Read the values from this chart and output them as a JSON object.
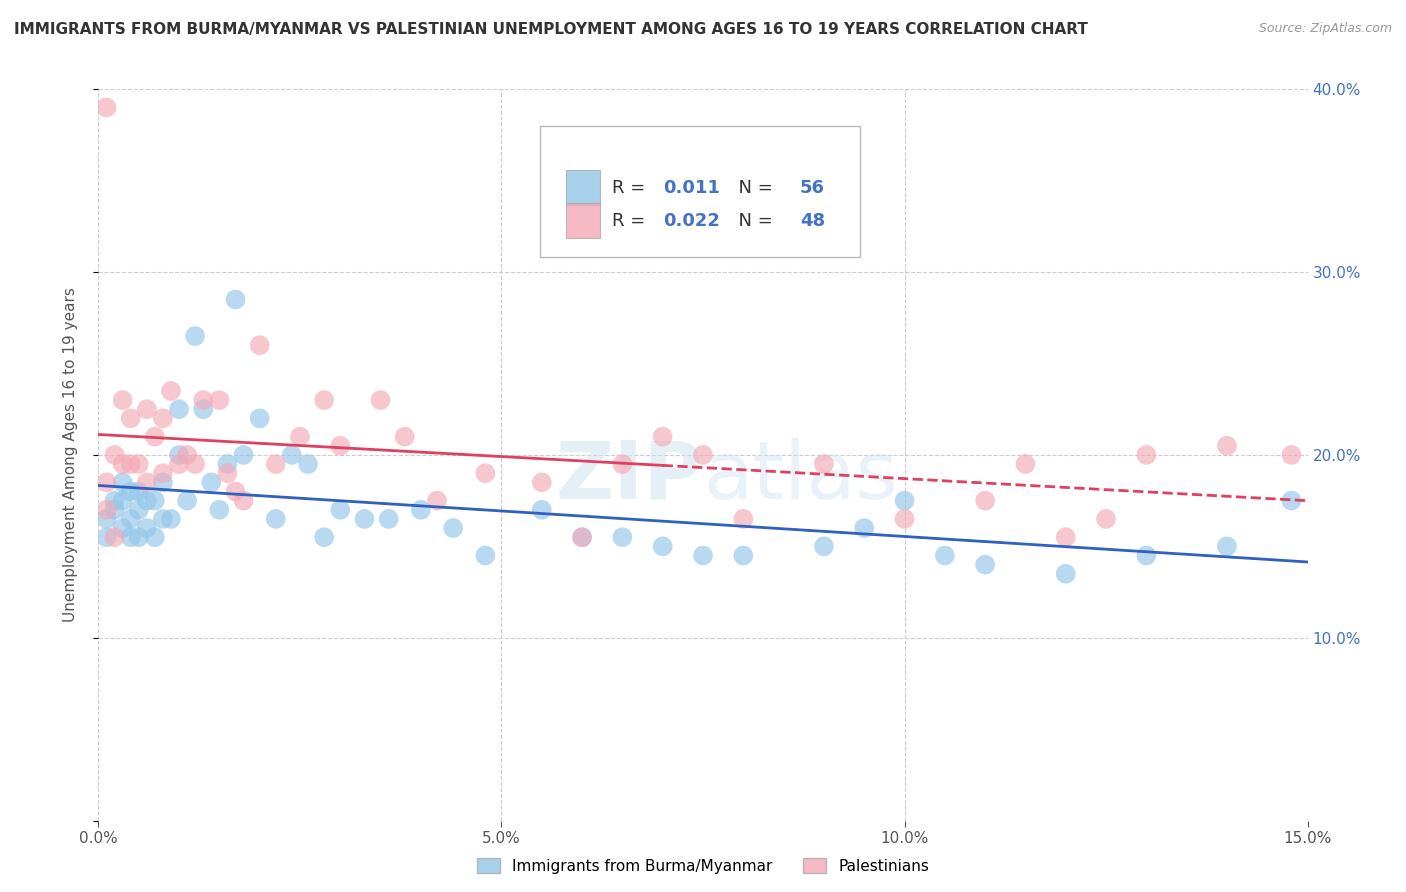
{
  "title": "IMMIGRANTS FROM BURMA/MYANMAR VS PALESTINIAN UNEMPLOYMENT AMONG AGES 16 TO 19 YEARS CORRELATION CHART",
  "source": "Source: ZipAtlas.com",
  "ylabel": "Unemployment Among Ages 16 to 19 years",
  "xlim": [
    0,
    0.15
  ],
  "ylim": [
    0,
    0.4
  ],
  "xticks": [
    0.0,
    0.05,
    0.1,
    0.15
  ],
  "xticklabels": [
    "0.0%",
    "5.0%",
    "10.0%",
    "15.0%"
  ],
  "yticks": [
    0.1,
    0.2,
    0.3,
    0.4
  ],
  "yticklabels": [
    "10.0%",
    "20.0%",
    "30.0%",
    "40.0%"
  ],
  "blue_R": 0.011,
  "blue_N": 56,
  "pink_R": 0.022,
  "pink_N": 48,
  "blue_color": "#93c6e8",
  "pink_color": "#f4a9b8",
  "blue_line_color": "#3060c0",
  "pink_line_color": "#e04060",
  "watermark": "ZIPatlas",
  "legend_blue_label": "Immigrants from Burma/Myanmar",
  "legend_pink_label": "Palestinians",
  "blue_x": [
    0.001,
    0.001,
    0.002,
    0.002,
    0.003,
    0.003,
    0.003,
    0.004,
    0.004,
    0.004,
    0.005,
    0.005,
    0.005,
    0.006,
    0.006,
    0.007,
    0.007,
    0.008,
    0.008,
    0.009,
    0.01,
    0.01,
    0.011,
    0.012,
    0.013,
    0.014,
    0.015,
    0.016,
    0.017,
    0.018,
    0.02,
    0.022,
    0.024,
    0.026,
    0.028,
    0.03,
    0.033,
    0.036,
    0.04,
    0.044,
    0.048,
    0.055,
    0.06,
    0.065,
    0.07,
    0.075,
    0.08,
    0.09,
    0.095,
    0.1,
    0.105,
    0.11,
    0.12,
    0.13,
    0.14,
    0.148
  ],
  "blue_y": [
    0.165,
    0.155,
    0.17,
    0.175,
    0.16,
    0.175,
    0.185,
    0.155,
    0.165,
    0.18,
    0.155,
    0.17,
    0.18,
    0.16,
    0.175,
    0.155,
    0.175,
    0.165,
    0.185,
    0.165,
    0.2,
    0.225,
    0.175,
    0.265,
    0.225,
    0.185,
    0.17,
    0.195,
    0.285,
    0.2,
    0.22,
    0.165,
    0.2,
    0.195,
    0.155,
    0.17,
    0.165,
    0.165,
    0.17,
    0.16,
    0.145,
    0.17,
    0.155,
    0.155,
    0.15,
    0.145,
    0.145,
    0.15,
    0.16,
    0.175,
    0.145,
    0.14,
    0.135,
    0.145,
    0.15,
    0.175
  ],
  "pink_x": [
    0.001,
    0.001,
    0.001,
    0.002,
    0.002,
    0.003,
    0.003,
    0.004,
    0.004,
    0.005,
    0.006,
    0.006,
    0.007,
    0.008,
    0.008,
    0.009,
    0.01,
    0.011,
    0.012,
    0.013,
    0.015,
    0.016,
    0.017,
    0.018,
    0.02,
    0.022,
    0.025,
    0.028,
    0.03,
    0.035,
    0.038,
    0.042,
    0.048,
    0.055,
    0.06,
    0.065,
    0.07,
    0.075,
    0.08,
    0.09,
    0.1,
    0.11,
    0.115,
    0.12,
    0.125,
    0.13,
    0.14,
    0.148
  ],
  "pink_y": [
    0.39,
    0.185,
    0.17,
    0.2,
    0.155,
    0.23,
    0.195,
    0.22,
    0.195,
    0.195,
    0.185,
    0.225,
    0.21,
    0.22,
    0.19,
    0.235,
    0.195,
    0.2,
    0.195,
    0.23,
    0.23,
    0.19,
    0.18,
    0.175,
    0.26,
    0.195,
    0.21,
    0.23,
    0.205,
    0.23,
    0.21,
    0.175,
    0.19,
    0.185,
    0.155,
    0.195,
    0.21,
    0.2,
    0.165,
    0.195,
    0.165,
    0.175,
    0.195,
    0.155,
    0.165,
    0.2,
    0.205,
    0.2
  ]
}
